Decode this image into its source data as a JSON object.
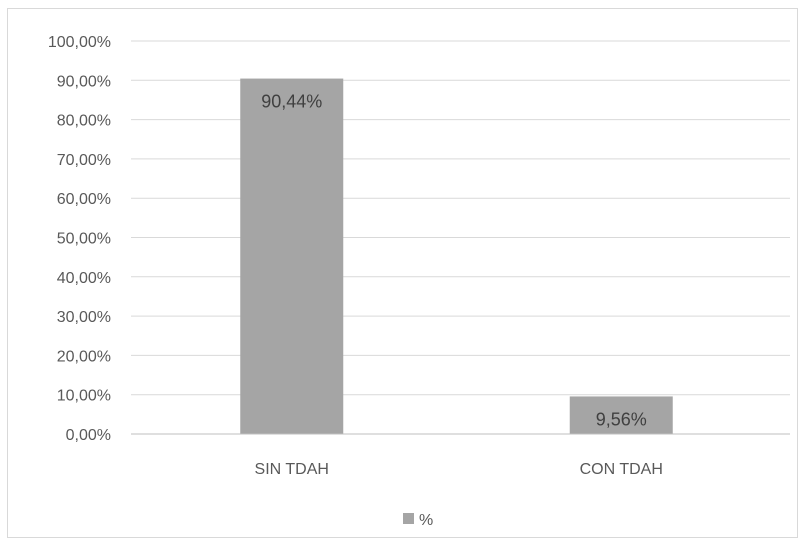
{
  "chart_data": {
    "type": "bar",
    "categories": [
      "SIN TDAH",
      "CON TDAH"
    ],
    "series": [
      {
        "name": "%",
        "values": [
          90.44,
          9.56
        ],
        "color": "#a5a5a5"
      }
    ],
    "data_labels": [
      "90,44%",
      "9,56%"
    ],
    "ylim": [
      0,
      100
    ],
    "yticks": [
      0,
      10,
      20,
      30,
      40,
      50,
      60,
      70,
      80,
      90,
      100
    ],
    "ytick_labels": [
      "0,00%",
      "10,00%",
      "20,00%",
      "30,00%",
      "40,00%",
      "50,00%",
      "60,00%",
      "70,00%",
      "80,00%",
      "90,00%",
      "100,00%"
    ],
    "grid": true,
    "legend": {
      "position": "bottom",
      "entries": [
        "%"
      ]
    },
    "colors": {
      "bar": "#a5a5a5",
      "grid": "#d9d9d9",
      "axis": "#bfbfbf",
      "text": "#595959"
    }
  }
}
